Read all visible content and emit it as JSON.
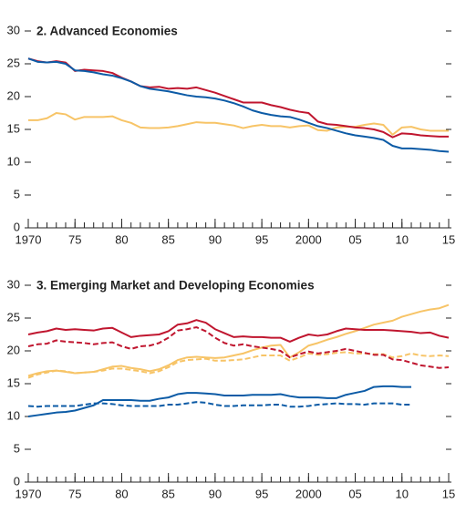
{
  "chart_data": [
    {
      "type": "line",
      "title": "2. Advanced Economies",
      "x": [
        1970,
        1971,
        1972,
        1973,
        1974,
        1975,
        1976,
        1977,
        1978,
        1979,
        1980,
        1981,
        1982,
        1983,
        1984,
        1985,
        1986,
        1987,
        1988,
        1989,
        1990,
        1991,
        1992,
        1993,
        1994,
        1995,
        1996,
        1997,
        1998,
        1999,
        2000,
        2001,
        2002,
        2003,
        2004,
        2005,
        2006,
        2007,
        2008,
        2009,
        2010,
        2011,
        2012,
        2013,
        2014,
        2015
      ],
      "xlim": [
        1970,
        2015
      ],
      "xticks": [
        1970,
        {
          "value": 1975,
          "label": "75"
        },
        {
          "value": 1980,
          "label": "80"
        },
        {
          "value": 1985,
          "label": "85"
        },
        {
          "value": 1990,
          "label": "90"
        },
        {
          "value": 1995,
          "label": "95"
        },
        2000,
        {
          "value": 2005,
          "label": "05"
        },
        {
          "value": 2010,
          "label": "10"
        },
        {
          "value": 2015,
          "label": "15"
        }
      ],
      "ylim": [
        0,
        30
      ],
      "yticks": [
        0,
        5,
        10,
        15,
        20,
        25,
        30
      ],
      "series": [
        {
          "color": "#f7c467",
          "dash": false,
          "values": [
            16.4,
            16.4,
            16.7,
            17.5,
            17.3,
            16.5,
            16.9,
            16.9,
            16.9,
            17.0,
            16.4,
            16.0,
            15.3,
            15.2,
            15.2,
            15.3,
            15.5,
            15.8,
            16.1,
            16.0,
            16.0,
            15.8,
            15.6,
            15.2,
            15.5,
            15.7,
            15.5,
            15.5,
            15.3,
            15.5,
            15.6,
            14.9,
            14.8,
            15.3,
            15.4,
            15.4,
            15.7,
            15.9,
            15.7,
            14.2,
            15.3,
            15.4,
            15.0,
            14.8,
            14.8,
            14.8
          ]
        },
        {
          "color": "#c0162f",
          "dash": false,
          "values": [
            25.8,
            25.4,
            25.2,
            25.4,
            25.2,
            23.9,
            24.1,
            24.0,
            23.9,
            23.6,
            22.9,
            22.3,
            21.6,
            21.4,
            21.5,
            21.2,
            21.3,
            21.2,
            21.4,
            21.0,
            20.6,
            20.1,
            19.6,
            19.1,
            19.1,
            19.1,
            18.7,
            18.4,
            18.0,
            17.7,
            17.5,
            16.2,
            15.8,
            15.7,
            15.5,
            15.3,
            15.2,
            15.0,
            14.6,
            13.8,
            14.4,
            14.3,
            14.1,
            14.0,
            13.9,
            13.9
          ]
        },
        {
          "color": "#0c5ba6",
          "dash": false,
          "values": [
            25.8,
            25.3,
            25.2,
            25.3,
            25.0,
            24.0,
            23.9,
            23.7,
            23.4,
            23.2,
            22.8,
            22.3,
            21.6,
            21.2,
            21.0,
            20.8,
            20.5,
            20.2,
            20.0,
            19.9,
            19.7,
            19.4,
            19.0,
            18.5,
            17.9,
            17.5,
            17.2,
            17.0,
            16.9,
            16.5,
            16.0,
            15.5,
            15.2,
            14.8,
            14.4,
            14.1,
            13.9,
            13.7,
            13.4,
            12.5,
            12.1,
            12.1,
            12.0,
            11.9,
            11.7,
            11.6
          ]
        }
      ]
    },
    {
      "type": "line",
      "title": "3. Emerging Market and Developing Economies",
      "x": [
        1970,
        1971,
        1972,
        1973,
        1974,
        1975,
        1976,
        1977,
        1978,
        1979,
        1980,
        1981,
        1982,
        1983,
        1984,
        1985,
        1986,
        1987,
        1988,
        1989,
        1990,
        1991,
        1992,
        1993,
        1994,
        1995,
        1996,
        1997,
        1998,
        1999,
        2000,
        2001,
        2002,
        2003,
        2004,
        2005,
        2006,
        2007,
        2008,
        2009,
        2010,
        2011,
        2012,
        2013,
        2014,
        2015
      ],
      "xlim": [
        1970,
        2015
      ],
      "xticks": [
        1970,
        {
          "value": 1975,
          "label": "75"
        },
        {
          "value": 1980,
          "label": "80"
        },
        {
          "value": 1985,
          "label": "85"
        },
        {
          "value": 1990,
          "label": "90"
        },
        {
          "value": 1995,
          "label": "95"
        },
        2000,
        {
          "value": 2005,
          "label": "05"
        },
        {
          "value": 2010,
          "label": "10"
        },
        {
          "value": 2015,
          "label": "15"
        }
      ],
      "ylim": [
        0,
        30
      ],
      "yticks": [
        0,
        5,
        10,
        15,
        20,
        25,
        30
      ],
      "series": [
        {
          "color": "#f7c467",
          "dash": false,
          "values": [
            16.2,
            16.6,
            16.9,
            17.0,
            16.8,
            16.6,
            16.7,
            16.8,
            17.2,
            17.6,
            17.7,
            17.4,
            17.2,
            16.9,
            17.2,
            17.8,
            18.6,
            19.0,
            19.1,
            19.0,
            18.9,
            19.0,
            19.3,
            19.6,
            20.1,
            20.5,
            20.8,
            20.9,
            19.0,
            19.8,
            20.8,
            21.2,
            21.7,
            22.1,
            22.6,
            23.0,
            23.5,
            24.0,
            24.3,
            24.6,
            25.2,
            25.6,
            26.0,
            26.3,
            26.5,
            27.0
          ]
        },
        {
          "color": "#f7c467",
          "dash": true,
          "values": [
            15.9,
            16.4,
            16.7,
            17.0,
            16.9,
            16.6,
            16.7,
            16.8,
            17.0,
            17.3,
            17.3,
            17.1,
            16.9,
            16.6,
            16.9,
            17.5,
            18.3,
            18.6,
            18.7,
            18.8,
            18.5,
            18.5,
            18.6,
            18.7,
            19.0,
            19.3,
            19.3,
            19.3,
            18.5,
            19.0,
            19.6,
            19.4,
            19.5,
            19.7,
            19.8,
            19.6,
            19.6,
            19.5,
            19.5,
            19.0,
            19.2,
            19.6,
            19.3,
            19.2,
            19.3,
            19.2
          ]
        },
        {
          "color": "#c0162f",
          "dash": false,
          "values": [
            22.5,
            22.8,
            23.0,
            23.4,
            23.2,
            23.3,
            23.2,
            23.1,
            23.4,
            23.5,
            22.8,
            22.1,
            22.3,
            22.4,
            22.5,
            23.0,
            24.0,
            24.2,
            24.7,
            24.3,
            23.3,
            22.7,
            22.1,
            22.2,
            22.1,
            22.1,
            22.0,
            22.0,
            21.4,
            22.0,
            22.5,
            22.3,
            22.5,
            23.0,
            23.4,
            23.3,
            23.2,
            23.2,
            23.2,
            23.1,
            23.0,
            22.9,
            22.7,
            22.8,
            22.3,
            22.0
          ]
        },
        {
          "color": "#c0162f",
          "dash": true,
          "values": [
            20.7,
            21.0,
            21.1,
            21.6,
            21.4,
            21.3,
            21.2,
            21.0,
            21.2,
            21.3,
            20.7,
            20.3,
            20.7,
            20.8,
            21.2,
            22.0,
            23.1,
            23.3,
            23.6,
            23.0,
            22.0,
            21.2,
            20.8,
            21.0,
            20.7,
            20.5,
            20.3,
            20.0,
            19.0,
            19.5,
            19.9,
            19.6,
            19.8,
            20.0,
            20.3,
            20.0,
            19.7,
            19.4,
            19.4,
            18.7,
            18.6,
            18.2,
            17.8,
            17.6,
            17.4,
            17.5
          ]
        },
        {
          "color": "#0c5ba6",
          "dash": false,
          "values": [
            10.0,
            10.2,
            10.4,
            10.6,
            10.7,
            10.9,
            11.3,
            11.7,
            12.5,
            12.5,
            12.5,
            12.5,
            12.4,
            12.4,
            12.7,
            12.9,
            13.4,
            13.6,
            13.6,
            13.5,
            13.4,
            13.2,
            13.2,
            13.2,
            13.3,
            13.3,
            13.3,
            13.4,
            13.1,
            12.9,
            12.9,
            12.9,
            12.8,
            12.8,
            13.3,
            13.6,
            13.9,
            14.5,
            14.6,
            14.6,
            14.5,
            14.5,
            null,
            null,
            null,
            null
          ]
        },
        {
          "color": "#0c5ba6",
          "dash": true,
          "values": [
            11.6,
            11.5,
            11.6,
            11.6,
            11.6,
            11.6,
            11.8,
            12.0,
            12.0,
            11.9,
            11.7,
            11.6,
            11.6,
            11.6,
            11.6,
            11.8,
            11.8,
            12.0,
            12.2,
            12.1,
            11.8,
            11.6,
            11.6,
            11.7,
            11.7,
            11.7,
            11.8,
            11.8,
            11.5,
            11.5,
            11.6,
            11.8,
            11.9,
            12.0,
            11.9,
            11.9,
            11.8,
            12.0,
            12.0,
            12.0,
            11.8,
            11.8,
            null,
            null,
            null,
            null
          ]
        }
      ]
    }
  ]
}
